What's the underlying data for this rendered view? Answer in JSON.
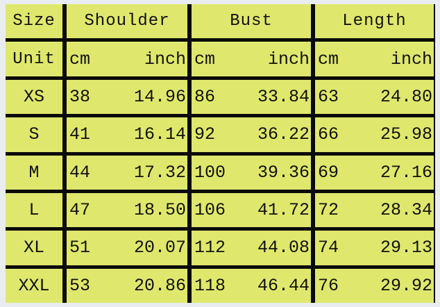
{
  "header": {
    "size": "Size",
    "columns": [
      "Shoulder",
      "Bust",
      "Length"
    ]
  },
  "unit_row": {
    "label": "Unit",
    "cm": "cm",
    "inch": "inch"
  },
  "rows": [
    {
      "size": "XS",
      "shoulder_cm": "38",
      "shoulder_in": "14.96",
      "bust_cm": "86",
      "bust_in": "33.84",
      "length_cm": "63",
      "length_in": "24.80"
    },
    {
      "size": "S",
      "shoulder_cm": "41",
      "shoulder_in": "16.14",
      "bust_cm": "92",
      "bust_in": "36.22",
      "length_cm": "66",
      "length_in": "25.98"
    },
    {
      "size": "M",
      "shoulder_cm": "44",
      "shoulder_in": "17.32",
      "bust_cm": "100",
      "bust_in": "39.36",
      "length_cm": "69",
      "length_in": "27.16"
    },
    {
      "size": "L",
      "shoulder_cm": "47",
      "shoulder_in": "18.50",
      "bust_cm": "106",
      "bust_in": "41.72",
      "length_cm": "72",
      "length_in": "28.34"
    },
    {
      "size": "XL",
      "shoulder_cm": "51",
      "shoulder_in": "20.07",
      "bust_cm": "112",
      "bust_in": "44.08",
      "length_cm": "74",
      "length_in": "29.13"
    },
    {
      "size": "XXL",
      "shoulder_cm": "53",
      "shoulder_in": "20.86",
      "bust_cm": "118",
      "bust_in": "46.44",
      "length_cm": "76",
      "length_in": "29.92"
    }
  ],
  "colors": {
    "cell": "#dfe86c",
    "lines": "#0a0a0a",
    "background": "#e9edf1"
  }
}
